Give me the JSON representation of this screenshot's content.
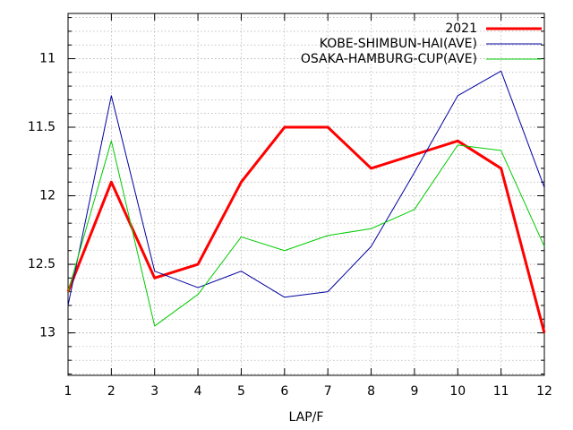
{
  "chart_data": {
    "type": "line",
    "x_label": "LAP/F",
    "x": [
      1,
      2,
      3,
      4,
      5,
      6,
      7,
      8,
      9,
      10,
      11,
      12
    ],
    "xlim": [
      1,
      12
    ],
    "xticks": [
      1,
      2,
      3,
      4,
      5,
      6,
      7,
      8,
      9,
      10,
      11,
      12
    ],
    "ylim": [
      10.67,
      13.31
    ],
    "y_reversed": true,
    "yticks": [
      11,
      11.5,
      12,
      12.5,
      13
    ],
    "grid": true,
    "legend": "top-right",
    "series": [
      {
        "name": "2021",
        "color": "#ff0000",
        "line_width": 3,
        "values": [
          12.7,
          11.9,
          12.6,
          12.5,
          11.9,
          11.5,
          11.5,
          11.8,
          11.7,
          11.6,
          11.8,
          13.0
        ]
      },
      {
        "name": "KOBE-SHIMBUN-HAI(AVE)",
        "color": "#0000a0",
        "line_width": 1,
        "values": [
          12.8,
          11.27,
          12.55,
          12.67,
          12.55,
          12.74,
          12.7,
          12.37,
          11.83,
          11.27,
          11.09,
          11.94
        ]
      },
      {
        "name": "OSAKA-HAMBURG-CUP(AVE)",
        "color": "#00cc00",
        "line_width": 1,
        "values": [
          12.7,
          11.6,
          12.95,
          12.72,
          12.3,
          12.4,
          12.29,
          12.24,
          12.1,
          11.63,
          11.67,
          12.37
        ]
      }
    ]
  }
}
